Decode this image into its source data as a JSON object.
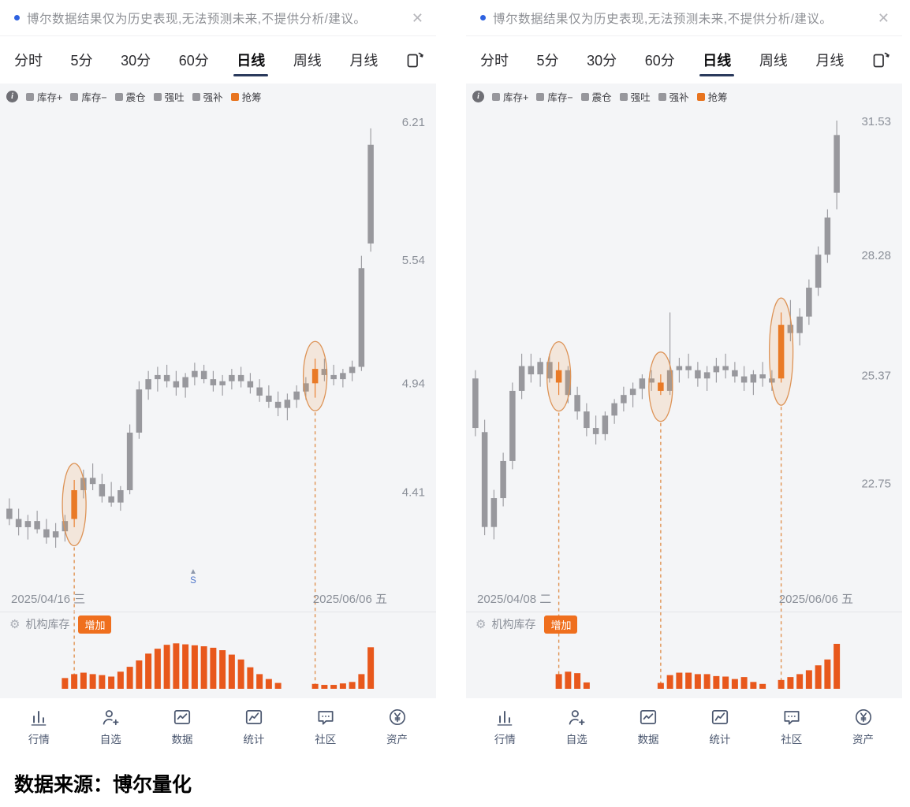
{
  "shared": {
    "notice": "博尔数据结果仅为历史表现,无法预测未来,不提供分析/建议。",
    "close_glyph": "✕",
    "tabs": [
      {
        "label": "分时"
      },
      {
        "label": "5分"
      },
      {
        "label": "30分"
      },
      {
        "label": "60分"
      },
      {
        "label": "日线"
      },
      {
        "label": "周线"
      },
      {
        "label": "月线"
      }
    ],
    "active_tab": "日线",
    "legend": [
      {
        "label": "库存+",
        "color": "#97979c"
      },
      {
        "label": "库存−",
        "color": "#97979c"
      },
      {
        "label": "震仓",
        "color": "#97979c"
      },
      {
        "label": "强吐",
        "color": "#97979c"
      },
      {
        "label": "强补",
        "color": "#97979c"
      },
      {
        "label": "抢筹",
        "color": "#e8741f"
      }
    ],
    "inventory": {
      "label": "机构库存",
      "badge": "增加"
    },
    "nav": [
      {
        "label": "行情",
        "icon": "bar-chart-icon"
      },
      {
        "label": "自选",
        "icon": "user-plus-icon"
      },
      {
        "label": "数据",
        "icon": "data-board-icon"
      },
      {
        "label": "统计",
        "icon": "stats-board-icon"
      },
      {
        "label": "社区",
        "icon": "chat-bubble-icon"
      },
      {
        "label": "资产",
        "icon": "yuan-circle-icon"
      }
    ],
    "colors": {
      "candle_gray": "#98989d",
      "candle_orange": "#e8741f",
      "bar_orange": "#e8581c",
      "dash_orange": "#e09252",
      "accent_blue": "#2e62e0",
      "badge_orange": "#ef6f1e"
    }
  },
  "chart_data": [
    {
      "type": "candlestick",
      "y_ticks": [
        "6.21",
        "5.54",
        "4.94",
        "4.41"
      ],
      "ylim": [
        3.96,
        6.26
      ],
      "dates": {
        "start": "2025/04/16 三",
        "end": "2025/06/06 五"
      },
      "signal": "S",
      "candles": [
        [
          4.33,
          4.38,
          4.25,
          4.28,
          0
        ],
        [
          4.28,
          4.33,
          4.2,
          4.24,
          0
        ],
        [
          4.24,
          4.3,
          4.18,
          4.27,
          0
        ],
        [
          4.27,
          4.32,
          4.21,
          4.23,
          0
        ],
        [
          4.23,
          4.28,
          4.16,
          4.19,
          0
        ],
        [
          4.19,
          4.26,
          4.14,
          4.22,
          0
        ],
        [
          4.22,
          4.3,
          4.17,
          4.27,
          0
        ],
        [
          4.28,
          4.47,
          4.24,
          4.42,
          1
        ],
        [
          4.42,
          4.52,
          4.38,
          4.48,
          0
        ],
        [
          4.48,
          4.55,
          4.42,
          4.45,
          0
        ],
        [
          4.45,
          4.5,
          4.36,
          4.39,
          0
        ],
        [
          4.39,
          4.46,
          4.34,
          4.36,
          0
        ],
        [
          4.36,
          4.44,
          4.32,
          4.42,
          0
        ],
        [
          4.42,
          4.74,
          4.4,
          4.7,
          0
        ],
        [
          4.7,
          4.95,
          4.67,
          4.91,
          0
        ],
        [
          4.91,
          5.0,
          4.86,
          4.96,
          0
        ],
        [
          4.96,
          5.02,
          4.9,
          4.98,
          0
        ],
        [
          4.98,
          5.03,
          4.92,
          4.95,
          0
        ],
        [
          4.95,
          5.0,
          4.88,
          4.92,
          0
        ],
        [
          4.92,
          4.99,
          4.87,
          4.97,
          0
        ],
        [
          4.97,
          5.04,
          4.93,
          5.0,
          0
        ],
        [
          5.0,
          5.03,
          4.94,
          4.96,
          0
        ],
        [
          4.96,
          5.0,
          4.9,
          4.93,
          0
        ],
        [
          4.93,
          4.98,
          4.88,
          4.95,
          0
        ],
        [
          4.95,
          5.01,
          4.91,
          4.98,
          0
        ],
        [
          4.98,
          5.02,
          4.92,
          4.95,
          0
        ],
        [
          4.95,
          4.99,
          4.89,
          4.92,
          0
        ],
        [
          4.92,
          4.96,
          4.85,
          4.88,
          0
        ],
        [
          4.88,
          4.93,
          4.82,
          4.85,
          0
        ],
        [
          4.85,
          4.9,
          4.78,
          4.82,
          0
        ],
        [
          4.82,
          4.89,
          4.76,
          4.86,
          0
        ],
        [
          4.86,
          4.93,
          4.82,
          4.9,
          0
        ],
        [
          4.9,
          4.97,
          4.86,
          4.94,
          0
        ],
        [
          4.94,
          5.06,
          4.87,
          5.01,
          1
        ],
        [
          5.01,
          5.06,
          4.95,
          4.98,
          0
        ],
        [
          4.98,
          5.03,
          4.93,
          4.96,
          0
        ],
        [
          4.96,
          5.01,
          4.92,
          4.99,
          0
        ],
        [
          4.99,
          5.05,
          4.95,
          5.02,
          0
        ],
        [
          5.02,
          5.56,
          5.0,
          5.5,
          0
        ],
        [
          5.62,
          6.18,
          5.58,
          6.1,
          0
        ]
      ],
      "inventory_bars": [
        0,
        0,
        0,
        0,
        0,
        0,
        0.22,
        0.3,
        0.33,
        0.3,
        0.28,
        0.25,
        0.35,
        0.45,
        0.58,
        0.72,
        0.82,
        0.9,
        0.93,
        0.91,
        0.89,
        0.87,
        0.84,
        0.79,
        0.7,
        0.6,
        0.44,
        0.3,
        0.2,
        0.12,
        0,
        0,
        0,
        0.1,
        0.08,
        0.08,
        0.11,
        0.14,
        0.3,
        0.85
      ]
    },
    {
      "type": "candlestick",
      "y_ticks": [
        "31.53",
        "28.28",
        "25.37",
        "22.75"
      ],
      "ylim": [
        20.3,
        31.76
      ],
      "dates": {
        "start": "2025/04/08 二",
        "end": "2025/06/06 五"
      },
      "candles": [
        [
          25.3,
          25.5,
          23.9,
          24.1,
          0
        ],
        [
          24.0,
          24.3,
          21.5,
          21.7,
          0
        ],
        [
          21.7,
          22.6,
          21.4,
          22.4,
          0
        ],
        [
          22.4,
          23.5,
          22.2,
          23.3,
          0
        ],
        [
          23.3,
          25.2,
          23.1,
          25.0,
          0
        ],
        [
          25.0,
          25.9,
          24.8,
          25.6,
          0
        ],
        [
          25.6,
          25.9,
          25.2,
          25.4,
          0
        ],
        [
          25.4,
          25.8,
          25.1,
          25.7,
          0
        ],
        [
          25.7,
          25.9,
          25.2,
          25.3,
          0
        ],
        [
          25.2,
          25.7,
          24.9,
          25.5,
          1
        ],
        [
          25.5,
          25.6,
          24.7,
          24.9,
          0
        ],
        [
          24.9,
          25.1,
          24.3,
          24.5,
          0
        ],
        [
          24.5,
          24.7,
          23.9,
          24.1,
          0
        ],
        [
          24.1,
          24.4,
          23.7,
          23.95,
          0
        ],
        [
          23.95,
          24.5,
          23.8,
          24.4,
          0
        ],
        [
          24.4,
          24.8,
          24.2,
          24.7,
          0
        ],
        [
          24.7,
          25.1,
          24.5,
          24.9,
          0
        ],
        [
          24.9,
          25.2,
          24.6,
          25.05,
          0
        ],
        [
          25.05,
          25.4,
          24.8,
          25.3,
          0
        ],
        [
          25.3,
          25.5,
          25.0,
          25.2,
          0
        ],
        [
          25.2,
          25.4,
          24.9,
          25.0,
          1
        ],
        [
          25.0,
          26.9,
          24.9,
          25.5,
          0
        ],
        [
          25.5,
          25.8,
          25.2,
          25.6,
          0
        ],
        [
          25.6,
          25.9,
          25.3,
          25.5,
          0
        ],
        [
          25.5,
          25.7,
          25.1,
          25.3,
          0
        ],
        [
          25.3,
          25.6,
          25.0,
          25.45,
          0
        ],
        [
          25.45,
          25.8,
          25.2,
          25.6,
          0
        ],
        [
          25.6,
          25.9,
          25.3,
          25.5,
          0
        ],
        [
          25.5,
          25.7,
          25.2,
          25.35,
          0
        ],
        [
          25.35,
          25.6,
          25.0,
          25.2,
          0
        ],
        [
          25.2,
          25.5,
          24.9,
          25.4,
          0
        ],
        [
          25.4,
          25.7,
          25.1,
          25.3,
          0
        ],
        [
          25.3,
          25.5,
          25.0,
          25.2,
          0
        ],
        [
          25.3,
          26.9,
          25.2,
          26.6,
          1
        ],
        [
          26.6,
          27.2,
          26.2,
          26.4,
          0
        ],
        [
          26.4,
          27.0,
          26.1,
          26.8,
          0
        ],
        [
          26.8,
          27.7,
          26.6,
          27.5,
          0
        ],
        [
          27.5,
          28.5,
          27.3,
          28.3,
          0
        ],
        [
          28.3,
          29.4,
          28.1,
          29.2,
          0
        ],
        [
          29.8,
          31.55,
          29.4,
          31.2,
          0
        ]
      ],
      "inventory_bars": [
        0,
        0,
        0,
        0,
        0,
        0,
        0,
        0,
        0,
        0.3,
        0.35,
        0.32,
        0.13,
        0,
        0,
        0,
        0,
        0,
        0,
        0,
        0.12,
        0.28,
        0.33,
        0.33,
        0.3,
        0.3,
        0.26,
        0.25,
        0.2,
        0.24,
        0.14,
        0.1,
        0,
        0.18,
        0.24,
        0.3,
        0.38,
        0.48,
        0.6,
        0.92
      ]
    }
  ],
  "footer": {
    "source": "数据来源：博尔量化"
  }
}
